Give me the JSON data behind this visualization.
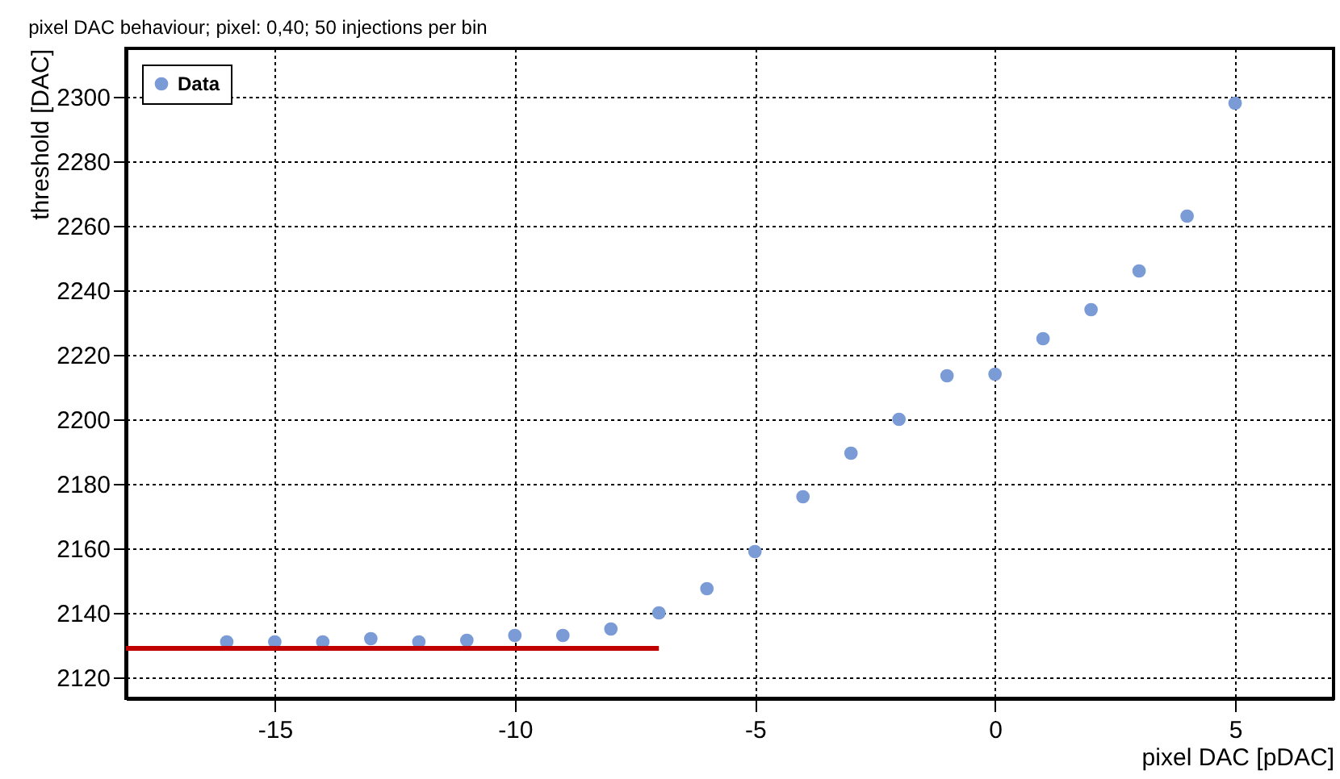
{
  "chart_data": {
    "type": "scatter",
    "title": "pixel DAC behaviour; pixel: 0,40; 50 injections per bin",
    "xlabel": "pixel DAC [pDAC]",
    "ylabel": "threshold [DAC]",
    "x": [
      -16,
      -15,
      -14,
      -13,
      -12,
      -11,
      -10,
      -9,
      -8,
      -7,
      -6,
      -5,
      -4,
      -3,
      -2,
      -1,
      0,
      1,
      2,
      3,
      4,
      5
    ],
    "series": [
      {
        "name": "Data",
        "color": "#7b9bd6",
        "marker": "circle",
        "values": [
          2131,
          2131,
          2131,
          2132,
          2131,
          2131.5,
          2133,
          2133,
          2135,
          2140,
          2147.5,
          2159,
          2176,
          2189.5,
          2200,
          2213.5,
          2214,
          2225,
          2234,
          2246,
          2263,
          2298
        ]
      },
      {
        "type": "line",
        "color": "#c00000",
        "x": [
          -18.1,
          -7
        ],
        "values": [
          2129,
          2129
        ]
      }
    ],
    "xlim": [
      -18.1,
      7.05
    ],
    "ylim": [
      2113.5,
      2315
    ],
    "xticks": [
      -15,
      -10,
      -5,
      0,
      5
    ],
    "yticks": [
      2120,
      2140,
      2160,
      2180,
      2200,
      2220,
      2240,
      2260,
      2280,
      2300
    ],
    "grid": true,
    "legend": "top left"
  }
}
